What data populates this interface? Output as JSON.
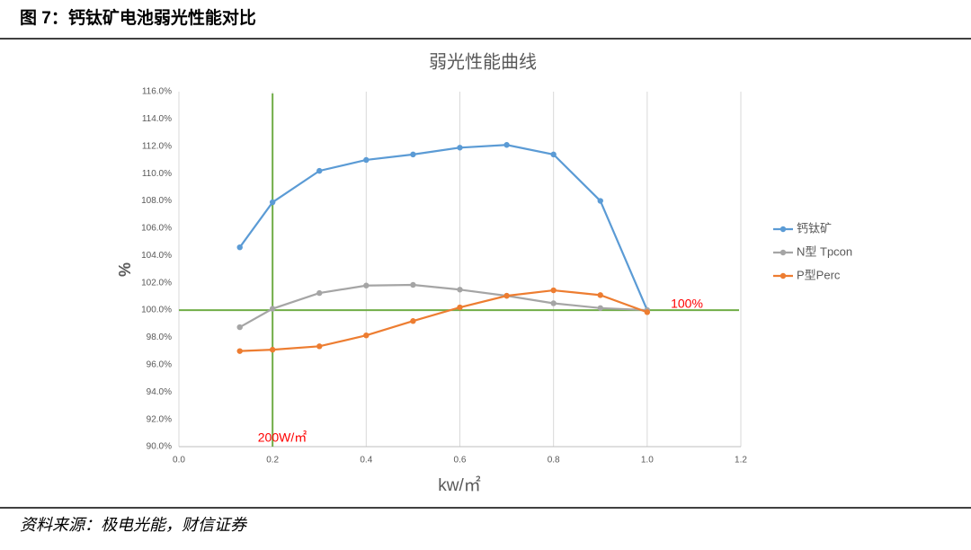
{
  "header": {
    "title": "图 7：钙钛矿电池弱光性能对比"
  },
  "chart_data": {
    "type": "line",
    "title": "弱光性能曲线",
    "x_label": "kw/㎡",
    "y_label": "%",
    "x": [
      0.13,
      0.2,
      0.3,
      0.4,
      0.5,
      0.6,
      0.7,
      0.8,
      0.9,
      1.0
    ],
    "series": [
      {
        "name": "钙钛矿",
        "color": "#5b9bd5",
        "values": [
          104.6,
          107.9,
          110.2,
          111.0,
          111.4,
          111.9,
          112.1,
          111.4,
          108.0,
          100.0
        ]
      },
      {
        "name": "N型 Tpcon",
        "color": "#a5a5a5",
        "values": [
          98.75,
          100.1,
          101.25,
          101.8,
          101.85,
          101.5,
          101.05,
          100.5,
          100.15,
          100.0
        ]
      },
      {
        "name": "P型Perc",
        "color": "#ed7d31",
        "values": [
          97.0,
          97.1,
          97.35,
          98.15,
          99.2,
          100.2,
          101.05,
          101.45,
          101.1,
          99.85
        ]
      }
    ],
    "xlim": [
      0,
      1.2
    ],
    "xticks": [
      {
        "value": 0,
        "label": "0.0"
      },
      0.2,
      0.4,
      0.6,
      0.8,
      {
        "value": 1,
        "label": "1.0"
      },
      1.2
    ],
    "ylim": [
      90,
      116
    ],
    "yticks": [
      {
        "value": 90,
        "label": "90.0%"
      },
      {
        "value": 92,
        "label": "92.0%"
      },
      {
        "value": 94,
        "label": "94.0%"
      },
      {
        "value": 96,
        "label": "96.0%"
      },
      {
        "value": 98,
        "label": "98.0%"
      },
      {
        "value": 100,
        "label": "100.0%"
      },
      {
        "value": 102,
        "label": "102.0%"
      },
      {
        "value": 104,
        "label": "104.0%"
      },
      {
        "value": 106,
        "label": "106.0%"
      },
      {
        "value": 108,
        "label": "108.0%"
      },
      {
        "value": 110,
        "label": "110.0%"
      },
      {
        "value": 112,
        "label": "112.0%"
      },
      {
        "value": 114,
        "label": "114.0%"
      },
      {
        "value": 116,
        "label": "116.0%"
      }
    ],
    "grid": "x",
    "legend": "right",
    "reference_lines": {
      "color": "#70ad47",
      "hline": 100,
      "vline": 0.2
    },
    "annotations": [
      "100%",
      "200W/㎡"
    ]
  },
  "footer": {
    "source": "资料来源：极电光能，财信证券"
  }
}
